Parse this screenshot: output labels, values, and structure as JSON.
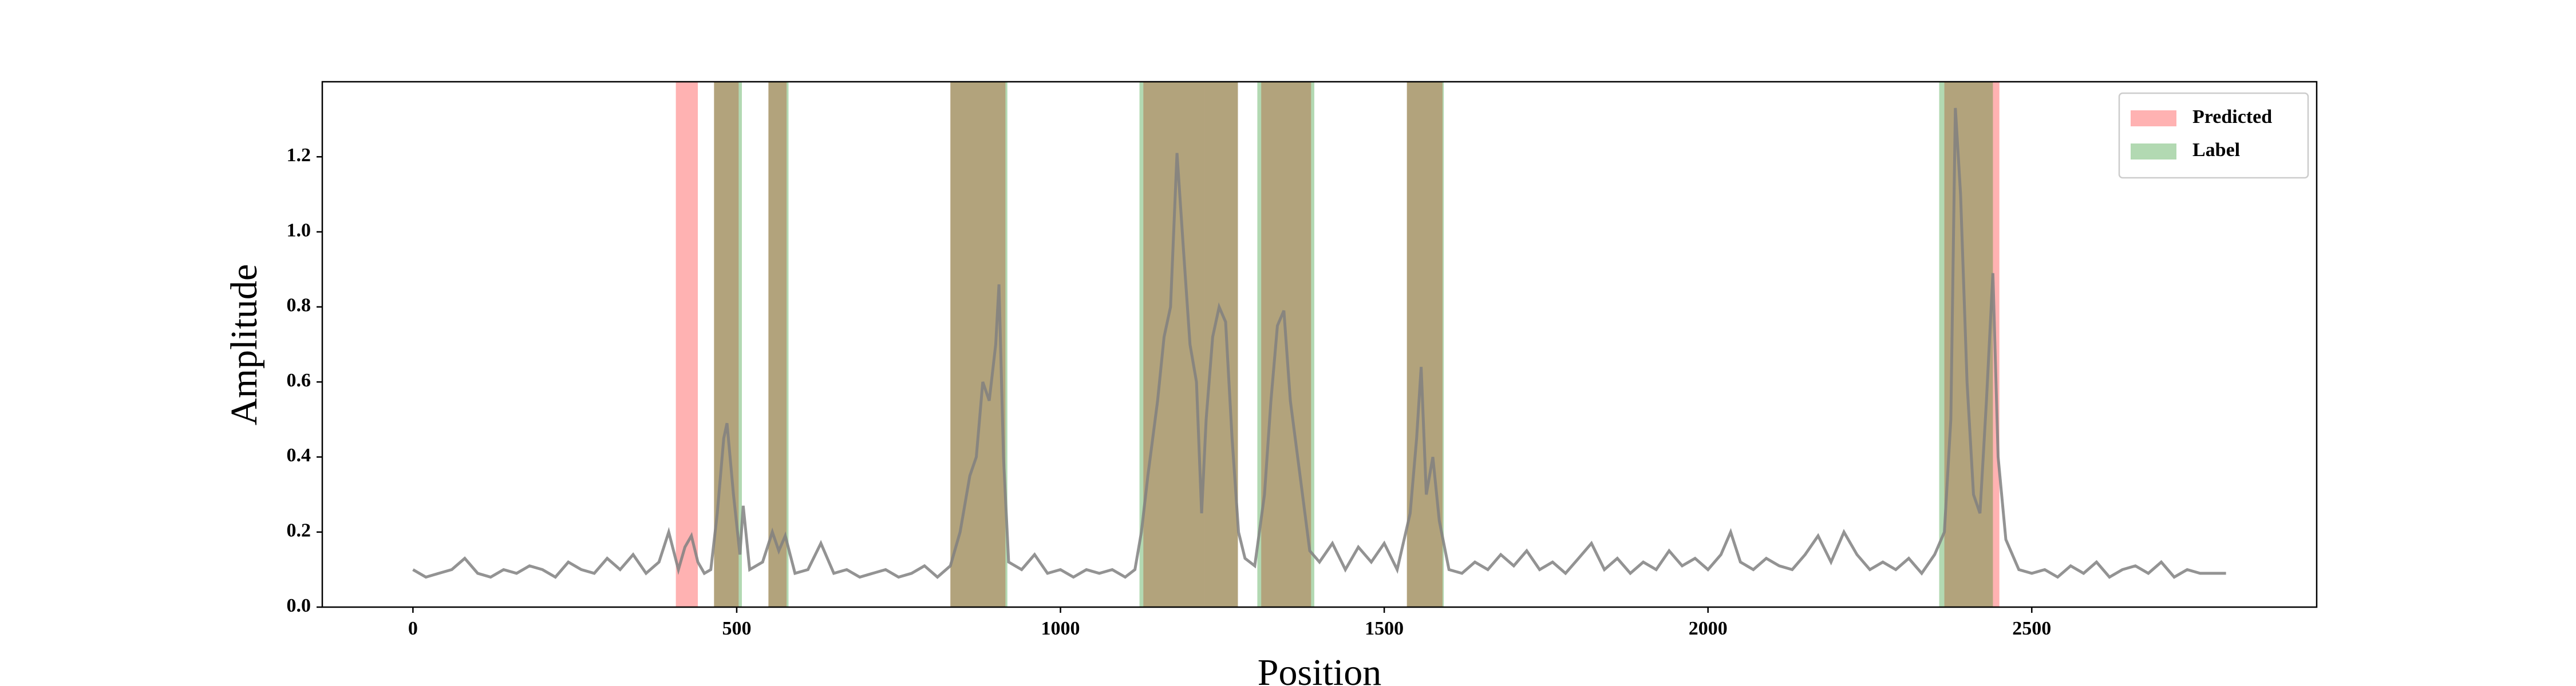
{
  "chart_data": {
    "type": "line",
    "xlabel": "Position",
    "ylabel": "Amplitude",
    "xlim": [
      -140,
      2940
    ],
    "ylim": [
      0,
      1.4
    ],
    "xticks": [
      0,
      500,
      1000,
      1500,
      2000,
      2500
    ],
    "yticks": [
      {
        "value": 0,
        "label": "0.0"
      },
      0.2,
      0.4,
      0.6,
      0.8,
      {
        "value": 1,
        "label": "1.0"
      },
      1.2
    ],
    "legend": "upper right",
    "spans": [
      {
        "name": "Predicted",
        "color": "red",
        "alpha": 0.3,
        "intervals": [
          [
            406,
            440
          ],
          [
            465,
            503
          ],
          [
            549,
            577
          ],
          [
            830,
            915
          ],
          [
            1128,
            1274
          ],
          [
            1310,
            1387
          ],
          [
            1535,
            1590
          ],
          [
            2365,
            2450
          ]
        ]
      },
      {
        "name": "Label",
        "color": "green",
        "alpha": 0.3,
        "intervals": [
          [
            465,
            508
          ],
          [
            549,
            580
          ],
          [
            830,
            918
          ],
          [
            1122,
            1222
          ],
          [
            1222,
            1274
          ],
          [
            1304,
            1392
          ],
          [
            1535,
            1592
          ],
          [
            2357,
            2440
          ]
        ]
      }
    ],
    "x": [
      0,
      20,
      40,
      60,
      80,
      100,
      120,
      140,
      160,
      180,
      200,
      220,
      240,
      260,
      280,
      300,
      320,
      340,
      360,
      380,
      395,
      410,
      420,
      430,
      440,
      450,
      460,
      470,
      480,
      485,
      495,
      505,
      510,
      520,
      540,
      555,
      565,
      575,
      590,
      610,
      630,
      650,
      670,
      690,
      710,
      730,
      750,
      770,
      790,
      810,
      830,
      845,
      860,
      870,
      880,
      890,
      900,
      905,
      912,
      920,
      940,
      960,
      980,
      1000,
      1020,
      1040,
      1060,
      1080,
      1100,
      1115,
      1125,
      1135,
      1150,
      1160,
      1170,
      1180,
      1190,
      1200,
      1210,
      1218,
      1225,
      1235,
      1245,
      1255,
      1265,
      1275,
      1285,
      1300,
      1315,
      1325,
      1335,
      1345,
      1355,
      1370,
      1385,
      1400,
      1420,
      1440,
      1460,
      1480,
      1500,
      1520,
      1540,
      1550,
      1557,
      1565,
      1575,
      1585,
      1600,
      1620,
      1640,
      1660,
      1680,
      1700,
      1720,
      1740,
      1760,
      1780,
      1800,
      1820,
      1840,
      1860,
      1880,
      1900,
      1920,
      1940,
      1960,
      1980,
      2000,
      2020,
      2035,
      2050,
      2070,
      2090,
      2110,
      2130,
      2150,
      2170,
      2190,
      2210,
      2230,
      2250,
      2270,
      2290,
      2310,
      2330,
      2350,
      2365,
      2375,
      2382,
      2390,
      2400,
      2410,
      2420,
      2430,
      2440,
      2448,
      2460,
      2480,
      2500,
      2520,
      2540,
      2560,
      2580,
      2600,
      2620,
      2640,
      2660,
      2680,
      2700,
      2720,
      2740,
      2760,
      2780,
      2800
    ],
    "series": [
      {
        "color": "gray",
        "values": [
          0.1,
          0.08,
          0.09,
          0.1,
          0.13,
          0.09,
          0.08,
          0.1,
          0.09,
          0.11,
          0.1,
          0.08,
          0.12,
          0.1,
          0.09,
          0.13,
          0.1,
          0.14,
          0.09,
          0.12,
          0.2,
          0.1,
          0.16,
          0.19,
          0.12,
          0.09,
          0.1,
          0.25,
          0.45,
          0.49,
          0.3,
          0.14,
          0.27,
          0.1,
          0.12,
          0.2,
          0.15,
          0.19,
          0.09,
          0.1,
          0.17,
          0.09,
          0.1,
          0.08,
          0.09,
          0.1,
          0.08,
          0.09,
          0.11,
          0.08,
          0.11,
          0.2,
          0.35,
          0.4,
          0.6,
          0.55,
          0.7,
          0.86,
          0.4,
          0.12,
          0.1,
          0.14,
          0.09,
          0.1,
          0.08,
          0.1,
          0.09,
          0.1,
          0.08,
          0.1,
          0.2,
          0.35,
          0.55,
          0.72,
          0.8,
          1.21,
          0.95,
          0.7,
          0.6,
          0.25,
          0.5,
          0.72,
          0.8,
          0.76,
          0.45,
          0.2,
          0.13,
          0.11,
          0.3,
          0.55,
          0.75,
          0.79,
          0.55,
          0.35,
          0.15,
          0.12,
          0.17,
          0.1,
          0.16,
          0.12,
          0.17,
          0.1,
          0.25,
          0.45,
          0.64,
          0.3,
          0.4,
          0.23,
          0.1,
          0.09,
          0.12,
          0.1,
          0.14,
          0.11,
          0.15,
          0.1,
          0.12,
          0.09,
          0.13,
          0.17,
          0.1,
          0.13,
          0.09,
          0.12,
          0.1,
          0.15,
          0.11,
          0.13,
          0.1,
          0.14,
          0.2,
          0.12,
          0.1,
          0.13,
          0.11,
          0.1,
          0.14,
          0.19,
          0.12,
          0.2,
          0.14,
          0.1,
          0.12,
          0.1,
          0.13,
          0.09,
          0.14,
          0.2,
          0.5,
          1.33,
          1.1,
          0.6,
          0.3,
          0.25,
          0.55,
          0.89,
          0.4,
          0.18,
          0.1,
          0.09,
          0.1,
          0.08,
          0.11,
          0.09,
          0.12,
          0.08,
          0.1,
          0.11,
          0.09,
          0.12,
          0.08,
          0.1,
          0.09,
          0.09,
          0.09
        ]
      }
    ]
  }
}
